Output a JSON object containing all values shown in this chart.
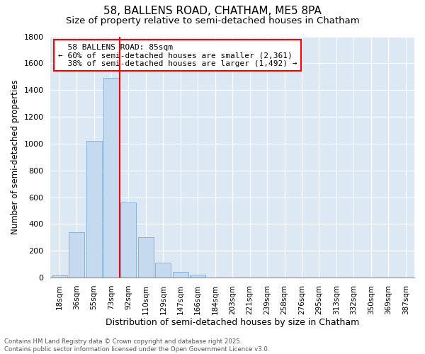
{
  "title1": "58, BALLENS ROAD, CHATHAM, ME5 8PA",
  "title2": "Size of property relative to semi-detached houses in Chatham",
  "xlabel": "Distribution of semi-detached houses by size in Chatham",
  "ylabel": "Number of semi-detached properties",
  "categories": [
    "18sqm",
    "36sqm",
    "55sqm",
    "73sqm",
    "92sqm",
    "110sqm",
    "129sqm",
    "147sqm",
    "166sqm",
    "184sqm",
    "203sqm",
    "221sqm",
    "239sqm",
    "258sqm",
    "276sqm",
    "295sqm",
    "313sqm",
    "332sqm",
    "350sqm",
    "369sqm",
    "387sqm"
  ],
  "values": [
    15,
    340,
    1020,
    1490,
    560,
    300,
    110,
    45,
    20,
    0,
    0,
    0,
    0,
    0,
    0,
    0,
    0,
    0,
    0,
    0,
    0
  ],
  "bar_color": "#c5d9ef",
  "bar_edge_color": "#7aadd4",
  "redline_x": 3.5,
  "property_label": "58 BALLENS ROAD: 85sqm",
  "pct_smaller": "60%",
  "count_smaller": "2,361",
  "pct_larger": "38%",
  "count_larger": "1,492",
  "ylim": [
    0,
    1800
  ],
  "yticks": [
    0,
    200,
    400,
    600,
    800,
    1000,
    1200,
    1400,
    1600,
    1800
  ],
  "bg_color": "#dce9f5",
  "footnote": "Contains HM Land Registry data © Crown copyright and database right 2025.\nContains public sector information licensed under the Open Government Licence v3.0.",
  "title1_fontsize": 11,
  "title2_fontsize": 9.5,
  "xlabel_fontsize": 9,
  "ylabel_fontsize": 8.5,
  "annot_fontsize": 8
}
